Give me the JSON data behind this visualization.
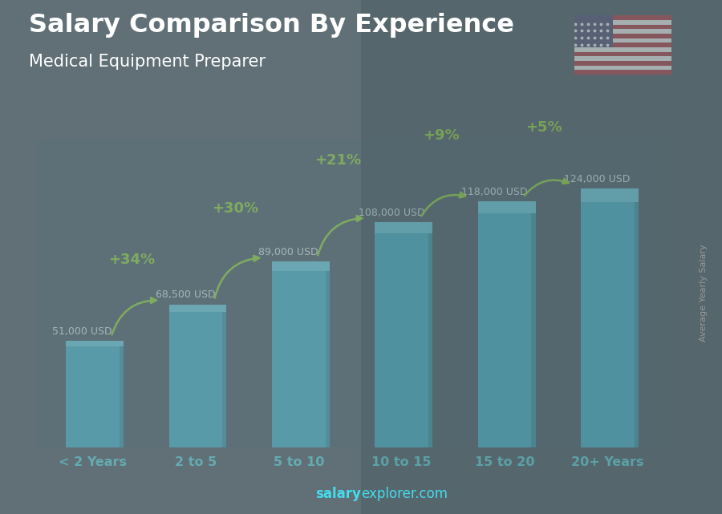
{
  "title_line1": "Salary Comparison By Experience",
  "title_line2": "Medical Equipment Preparer",
  "categories": [
    "< 2 Years",
    "2 to 5",
    "5 to 10",
    "10 to 15",
    "15 to 20",
    "20+ Years"
  ],
  "values": [
    51000,
    68500,
    89000,
    108000,
    118000,
    124000
  ],
  "salary_labels": [
    "51,000 USD",
    "68,500 USD",
    "89,000 USD",
    "108,000 USD",
    "118,000 USD",
    "124,000 USD"
  ],
  "pct_labels": [
    "+34%",
    "+30%",
    "+21%",
    "+9%",
    "+5%"
  ],
  "bar_color_main": "#29bde0",
  "bar_color_light": "#5dd8f5",
  "bar_color_dark": "#1a9ec0",
  "pct_color": "#88dd22",
  "salary_text_color": "#e8f8ff",
  "title_color": "#ffffff",
  "subtitle_color": "#ffffff",
  "xtick_color": "#44ddee",
  "ylabel_color": "#999999",
  "footer_salary_color": "#44ddee",
  "footer_explorer_color": "#aaaaaa",
  "bg_color": "#3a4a5a",
  "ylabel": "Average Yearly Salary",
  "footer_part1": "salary",
  "footer_part2": "explorer.com",
  "ylim": [
    0,
    148000
  ],
  "bar_width": 0.52,
  "fig_width": 9.0,
  "fig_height": 6.41
}
